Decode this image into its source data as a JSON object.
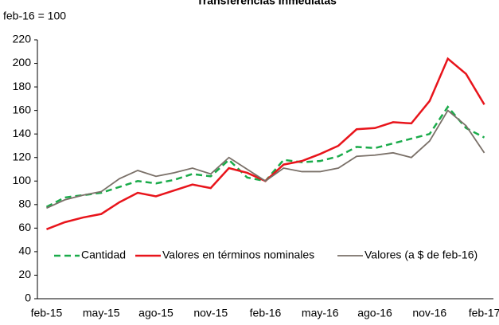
{
  "chart_data": {
    "type": "line",
    "title": "Transferencias Inmediatas",
    "y_label": "feb-16 = 100",
    "categories": [
      "feb-15",
      null,
      null,
      "may-15",
      null,
      null,
      "ago-15",
      null,
      null,
      "nov-15",
      null,
      null,
      "feb-16",
      null,
      null,
      "may-16",
      null,
      null,
      "ago-16",
      null,
      null,
      "nov-16",
      null,
      null,
      "feb-17"
    ],
    "series": [
      {
        "name": "Cantidad",
        "color": "#1aab4a",
        "dashed": true,
        "values": [
          78,
          86,
          88,
          90,
          95,
          100,
          98,
          101,
          106,
          104,
          118,
          103,
          100,
          118,
          116,
          117,
          121,
          129,
          128,
          132,
          136,
          140,
          163,
          145,
          137
        ]
      },
      {
        "name": "Valores en términos nominales",
        "color": "#e8141b",
        "values": [
          59,
          65,
          69,
          72,
          82,
          90,
          87,
          92,
          97,
          94,
          111,
          107,
          100,
          114,
          117,
          123,
          130,
          144,
          145,
          150,
          149,
          168,
          204,
          191,
          165
        ]
      },
      {
        "name": "Valores (a $ de feb-16)",
        "color": "#7a7068",
        "values": [
          77,
          84,
          88,
          91,
          102,
          109,
          104,
          107,
          111,
          106,
          120,
          110,
          100,
          111,
          108,
          108,
          111,
          121,
          122,
          124,
          120,
          134,
          160,
          147,
          124
        ]
      }
    ],
    "ylim": [
      0,
      220
    ],
    "yticks": [
      0,
      20,
      40,
      60,
      80,
      100,
      120,
      140,
      160,
      180,
      200,
      220
    ],
    "grid": false,
    "legend": "bottom"
  }
}
